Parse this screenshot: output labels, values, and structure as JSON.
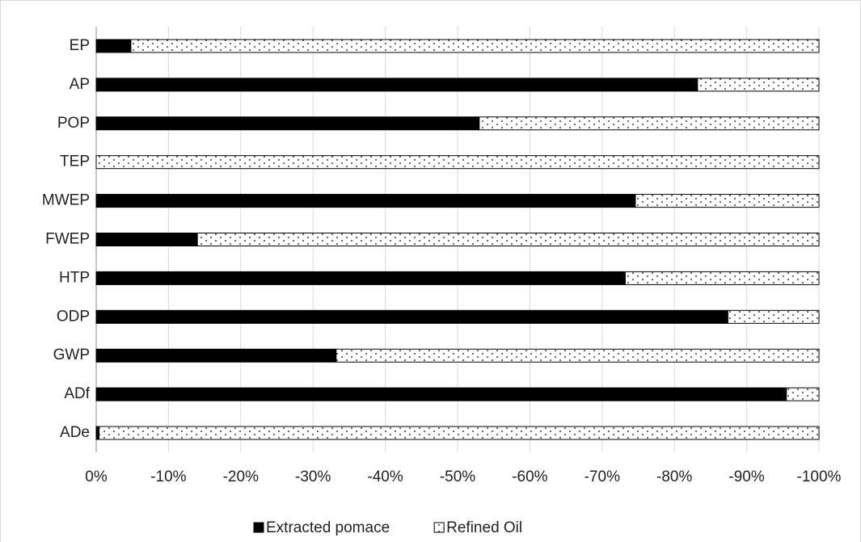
{
  "chart_data": {
    "type": "stacked-barh",
    "categories": [
      "EP",
      "AP",
      "POP",
      "TEP",
      "MWEP",
      "FWEP",
      "HTP",
      "ODP",
      "GWP",
      "ADf",
      "ADe"
    ],
    "series": [
      {
        "name": "Extracted pomace",
        "color": "#000000",
        "values": [
          -4.8,
          -83.2,
          -53,
          0,
          -74.6,
          -14,
          -73.2,
          -87.4,
          -33.2,
          -95.5,
          -0.4
        ]
      },
      {
        "name": "Refined Oil",
        "color": "#ffffff",
        "values": [
          -95.2,
          -16.8,
          -47,
          -100,
          -25.4,
          -86,
          -26.8,
          -12.6,
          -66.8,
          -4.5,
          -99.6
        ]
      }
    ],
    "xlim": [
      0,
      -100
    ],
    "xticks": [
      {
        "value": 0,
        "label": "0%"
      },
      {
        "value": -10,
        "label": "-10%"
      },
      {
        "value": -20,
        "label": "-20%"
      },
      {
        "value": -30,
        "label": "-30%"
      },
      {
        "value": -40,
        "label": "-40%"
      },
      {
        "value": -50,
        "label": "-50%"
      },
      {
        "value": -60,
        "label": "-60%"
      },
      {
        "value": -70,
        "label": "-70%"
      },
      {
        "value": -80,
        "label": "-80%"
      },
      {
        "value": -90,
        "label": "-90%"
      },
      {
        "value": -100,
        "label": "-100%"
      }
    ],
    "grid": true,
    "legend": "bottom"
  }
}
